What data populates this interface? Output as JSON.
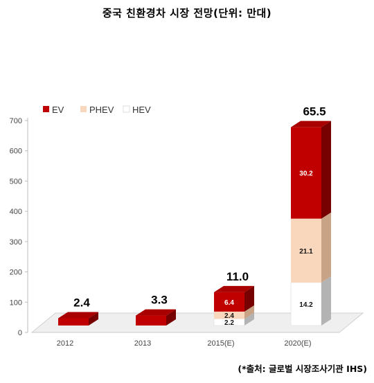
{
  "title": "중국 친환경차 시장 전망(단위: 만대)",
  "source": "(*출처: 글로벌 시장조사기관 IHS)",
  "colors": {
    "EV": "#c00000",
    "PHEV": "#f9d7bd",
    "HEV": "#ffffff"
  },
  "chart_data": {
    "type": "bar",
    "stacked": true,
    "three_d": true,
    "categories": [
      "2012",
      "2013",
      "2015(E)",
      "2020(E)"
    ],
    "series": [
      {
        "name": "HEV",
        "values": [
          0,
          0,
          2.2,
          14.2
        ],
        "labels": [
          "",
          "",
          "2.2",
          "14.2"
        ]
      },
      {
        "name": "PHEV",
        "values": [
          0,
          0,
          2.4,
          21.1
        ],
        "labels": [
          "",
          "",
          "2.4",
          "21.1"
        ]
      },
      {
        "name": "EV",
        "values": [
          2.4,
          3.3,
          6.4,
          30.2
        ],
        "labels": [
          "",
          "",
          "6.4",
          "30.2"
        ]
      }
    ],
    "totals": [
      "2.4",
      "3.3",
      "11.0",
      "65.5"
    ],
    "yticks": [
      "0",
      "100",
      "200",
      "300",
      "400",
      "500",
      "600",
      "700"
    ],
    "ylim": [
      0,
      700
    ],
    "legend": [
      "EV",
      "PHEV",
      "HEV"
    ],
    "legend_position": "top-left",
    "grid": false
  }
}
